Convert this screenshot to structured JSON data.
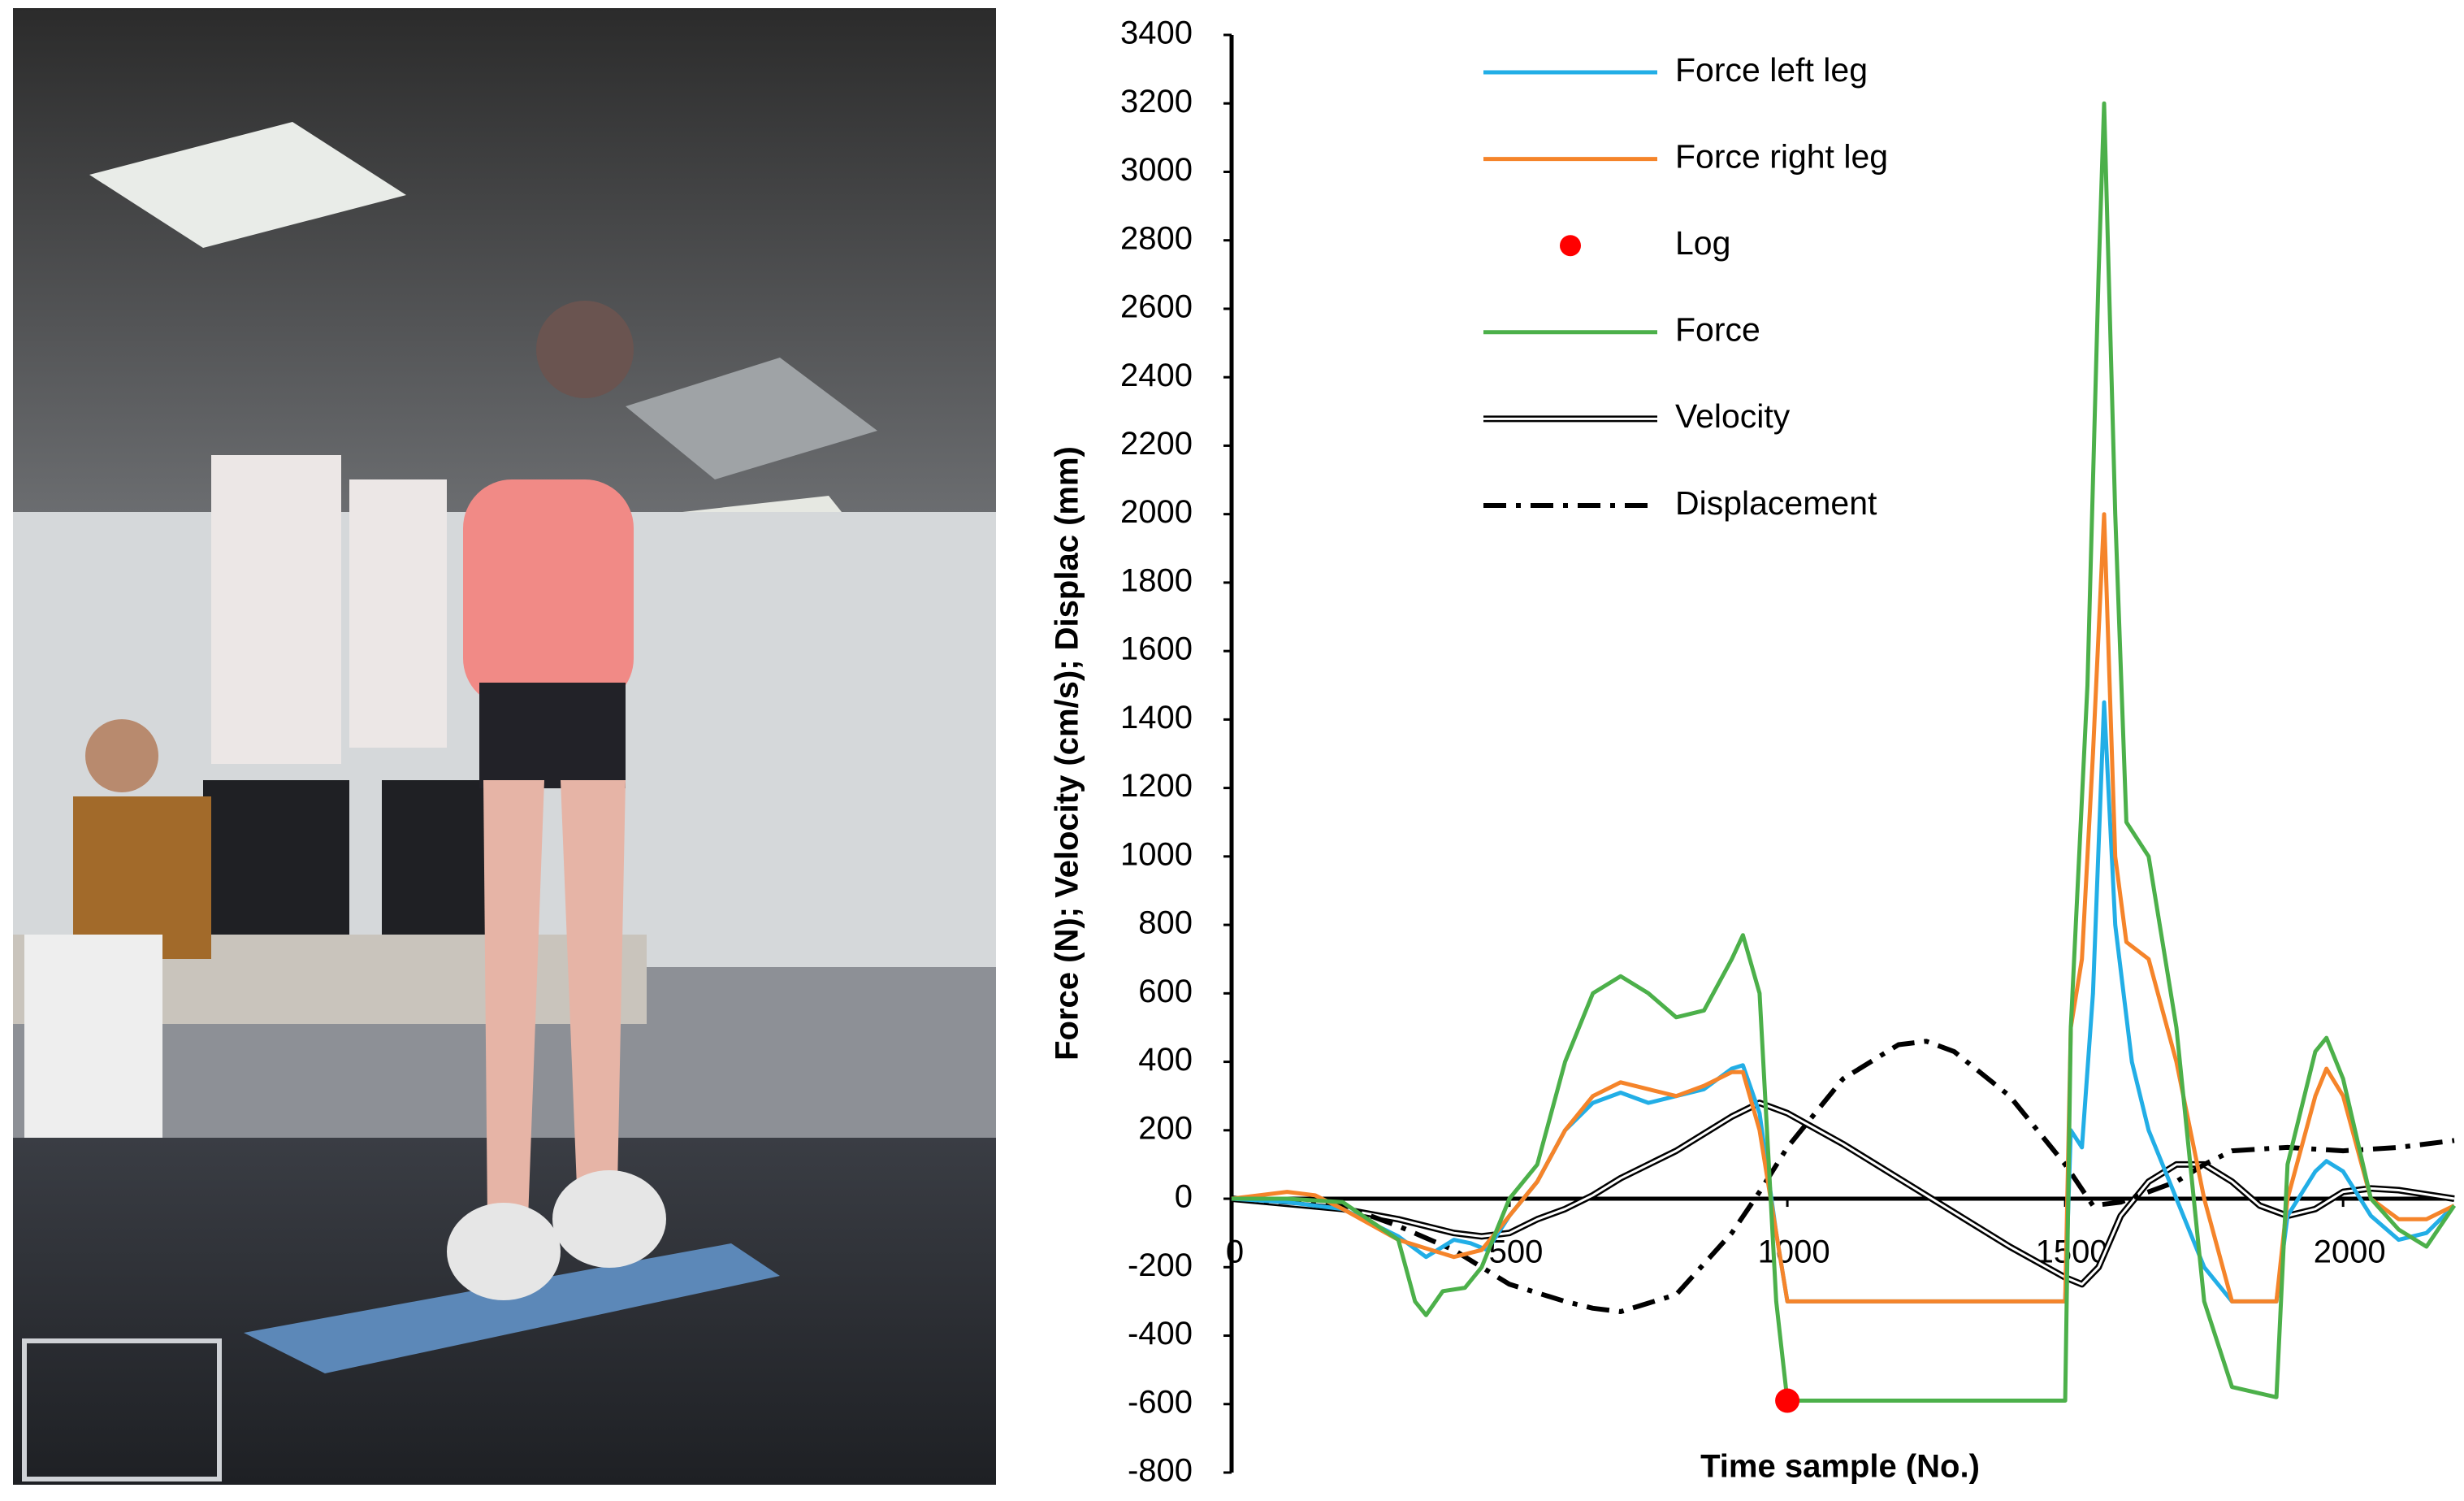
{
  "chart_data": {
    "type": "line",
    "x_label": "Time sample (No.)",
    "y_label": "Force (N); Velocity (cm/s); Displac (mm)",
    "xlim": [
      0,
      2200
    ],
    "xticks": [
      0,
      500,
      1000,
      1500,
      2000
    ],
    "ylim": [
      -800,
      3400
    ],
    "yticks": [
      -800,
      -600,
      -400,
      -200,
      0,
      200,
      400,
      600,
      800,
      1000,
      1200,
      1400,
      1600,
      1800,
      2000,
      2200,
      2400,
      2600,
      2800,
      3000,
      3200,
      3400
    ],
    "series": [
      {
        "name": "Force left leg",
        "color": "#22aee6",
        "style": "solid",
        "x": [
          0,
          100,
          200,
          300,
          350,
          400,
          430,
          460,
          500,
          550,
          600,
          650,
          700,
          750,
          800,
          850,
          900,
          920,
          950,
          980,
          1000,
          1500,
          1510,
          1530,
          1550,
          1570,
          1590,
          1620,
          1650,
          1700,
          1750,
          1800,
          1880,
          1900,
          1950,
          1970,
          2000,
          2050,
          2100,
          2150,
          2200
        ],
        "values": [
          0,
          -10,
          -30,
          -110,
          -170,
          -120,
          -130,
          -150,
          -50,
          50,
          200,
          280,
          310,
          280,
          300,
          320,
          380,
          390,
          250,
          -100,
          -300,
          -300,
          200,
          150,
          600,
          1450,
          800,
          400,
          200,
          0,
          -200,
          -300,
          -300,
          -50,
          80,
          110,
          80,
          -50,
          -120,
          -100,
          -20
        ]
      },
      {
        "name": "Force right leg",
        "color": "#f5842a",
        "style": "solid",
        "x": [
          0,
          100,
          150,
          200,
          300,
          400,
          450,
          500,
          550,
          600,
          650,
          700,
          750,
          800,
          850,
          900,
          920,
          950,
          980,
          1000,
          1500,
          1510,
          1530,
          1550,
          1570,
          1590,
          1610,
          1650,
          1700,
          1750,
          1800,
          1880,
          1900,
          1950,
          1970,
          2000,
          2050,
          2100,
          2150,
          2200
        ],
        "values": [
          0,
          20,
          10,
          -30,
          -120,
          -170,
          -150,
          -50,
          50,
          200,
          300,
          340,
          320,
          300,
          330,
          370,
          370,
          200,
          -100,
          -300,
          -300,
          500,
          700,
          1300,
          2000,
          1000,
          750,
          700,
          400,
          0,
          -300,
          -300,
          0,
          300,
          380,
          300,
          0,
          -60,
          -60,
          -20
        ]
      },
      {
        "name": "Log",
        "color": "#ff0000",
        "style": "marker",
        "x": [
          1000
        ],
        "values": [
          -590
        ]
      },
      {
        "name": "Force",
        "color": "#4cb04a",
        "style": "solid",
        "x": [
          0,
          100,
          200,
          300,
          330,
          350,
          380,
          420,
          450,
          500,
          550,
          600,
          650,
          700,
          750,
          800,
          850,
          900,
          920,
          950,
          980,
          1000,
          1500,
          1510,
          1540,
          1560,
          1570,
          1590,
          1610,
          1650,
          1700,
          1750,
          1800,
          1880,
          1900,
          1950,
          1970,
          2000,
          2050,
          2100,
          2150,
          2200
        ],
        "values": [
          0,
          0,
          -10,
          -120,
          -300,
          -340,
          -270,
          -260,
          -200,
          0,
          100,
          400,
          600,
          650,
          600,
          530,
          550,
          700,
          770,
          600,
          -300,
          -590,
          -590,
          500,
          1500,
          2700,
          3200,
          2000,
          1100,
          1000,
          500,
          -300,
          -550,
          -580,
          100,
          430,
          470,
          350,
          0,
          -90,
          -140,
          -20
        ]
      },
      {
        "name": "Velocity",
        "color": "#000000",
        "style": "double",
        "x": [
          0,
          200,
          300,
          400,
          450,
          500,
          550,
          600,
          650,
          700,
          800,
          900,
          950,
          1000,
          1100,
          1200,
          1300,
          1400,
          1500,
          1530,
          1560,
          1600,
          1650,
          1700,
          1750,
          1800,
          1850,
          1900,
          1950,
          2000,
          2050,
          2100,
          2200
        ],
        "values": [
          0,
          -30,
          -60,
          -100,
          -110,
          -100,
          -60,
          -30,
          10,
          60,
          140,
          240,
          280,
          250,
          160,
          60,
          -40,
          -140,
          -230,
          -250,
          -200,
          -50,
          50,
          100,
          100,
          50,
          -20,
          -50,
          -30,
          20,
          30,
          25,
          0
        ]
      },
      {
        "name": "Displacement",
        "color": "#000000",
        "style": "dash-dot",
        "x": [
          0,
          200,
          300,
          400,
          500,
          600,
          650,
          700,
          800,
          900,
          950,
          1000,
          1100,
          1200,
          1250,
          1300,
          1400,
          1500,
          1550,
          1600,
          1700,
          1750,
          1800,
          1900,
          2000,
          2100,
          2200
        ],
        "values": [
          0,
          -20,
          -80,
          -150,
          -250,
          -300,
          -320,
          -330,
          -280,
          -100,
          20,
          150,
          350,
          450,
          460,
          430,
          300,
          100,
          -20,
          -10,
          50,
          100,
          140,
          150,
          140,
          150,
          170
        ]
      }
    ]
  }
}
